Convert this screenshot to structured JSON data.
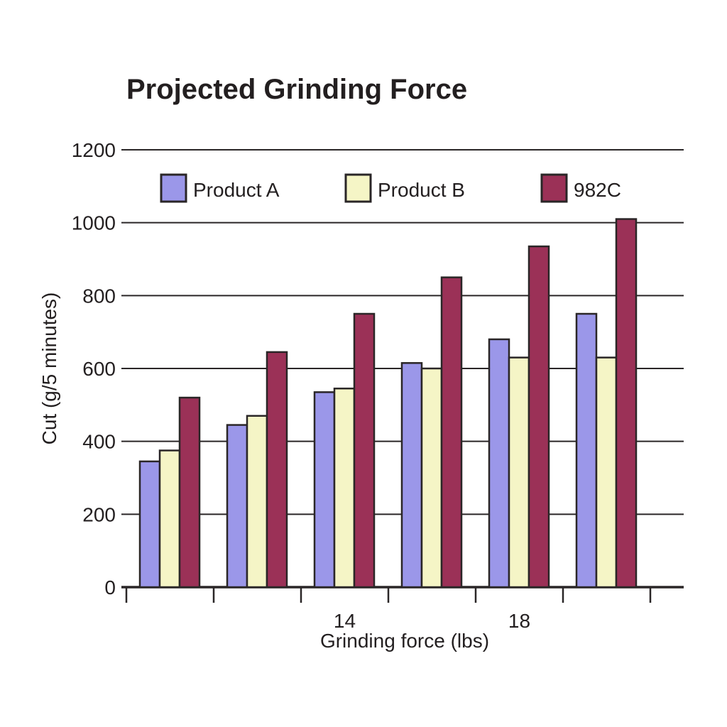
{
  "page": {
    "background": "#ffffff",
    "text_color": "#231f20"
  },
  "chart_data": {
    "type": "bar",
    "title": "Projected Grinding Force",
    "xlabel": "Grinding force (lbs)",
    "ylabel": "Cut (g/5 minutes)",
    "ylim": [
      0,
      1200
    ],
    "yticks": [
      0,
      200,
      400,
      600,
      800,
      1000,
      1200
    ],
    "x_tick_labels": [
      "",
      "",
      "14",
      "",
      "18",
      ""
    ],
    "grid": true,
    "legend_position": "top-inside",
    "legend_entries": [
      "Product A",
      "Product B",
      "982C"
    ],
    "series": [
      {
        "name": "Product A",
        "color": "#9b97e9",
        "values": [
          345,
          445,
          535,
          615,
          680,
          750
        ]
      },
      {
        "name": "Product B",
        "color": "#f5f5c6",
        "values": [
          375,
          470,
          545,
          600,
          630,
          630
        ]
      },
      {
        "name": "982C",
        "color": "#9b3157",
        "values": [
          520,
          645,
          750,
          850,
          935,
          1010
        ]
      }
    ],
    "axis_color": "#2a2627",
    "bar_border_color": "#2a2627",
    "text_color": "#231f20"
  }
}
